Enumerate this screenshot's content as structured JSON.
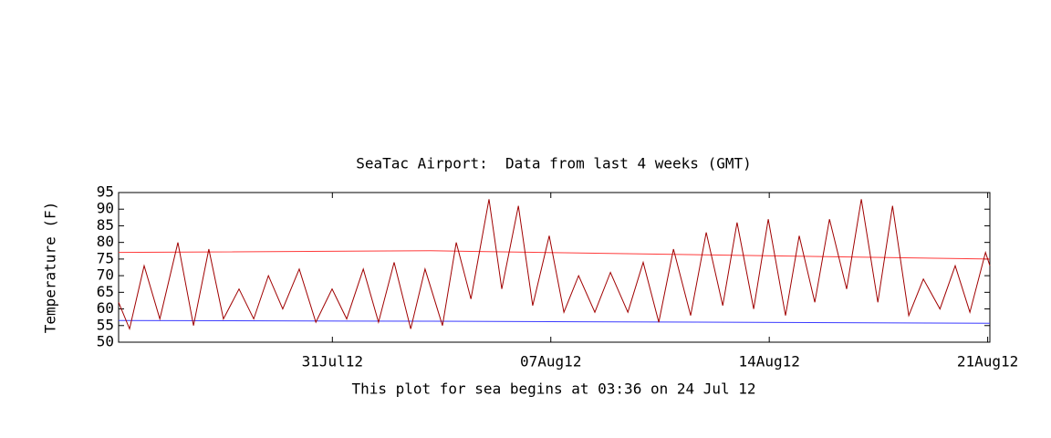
{
  "chart_data": {
    "type": "line",
    "title": "SeaTac Airport:  Data from last 4 weeks (GMT)",
    "y_label": "Temperature (F)",
    "x_label": "This plot for sea begins at 03:36 on 24 Jul 12",
    "xlim": [
      0,
      27.92
    ],
    "xticks": [
      {
        "value": 6.85,
        "label": "31Jul12"
      },
      {
        "value": 13.85,
        "label": "07Aug12"
      },
      {
        "value": 20.85,
        "label": "14Aug12"
      },
      {
        "value": 27.85,
        "label": "21Aug12"
      }
    ],
    "ylim": [
      50,
      95
    ],
    "yticks": [
      50,
      55,
      60,
      65,
      70,
      75,
      80,
      85,
      90,
      95
    ],
    "series": [
      {
        "color": "#ff3b3b",
        "x": [
          0,
          10,
          27.92
        ],
        "values": [
          77,
          77.5,
          75
        ]
      },
      {
        "color": "#3b3bff",
        "x": [
          0,
          10,
          27.92
        ],
        "values": [
          56.5,
          56.3,
          55.7
        ]
      },
      {
        "color": "#a00000",
        "x": [
          0,
          0.35,
          0.82,
          1.32,
          1.9,
          2.4,
          2.89,
          3.36,
          3.86,
          4.33,
          4.8,
          5.26,
          5.79,
          6.32,
          6.84,
          7.31,
          7.84,
          8.33,
          8.83,
          9.36,
          9.82,
          10.38,
          10.82,
          11.29,
          11.87,
          12.28,
          12.81,
          13.27,
          13.8,
          14.27,
          14.74,
          15.26,
          15.76,
          16.32,
          16.81,
          17.31,
          17.78,
          18.33,
          18.83,
          19.36,
          19.82,
          20.35,
          20.82,
          21.37,
          21.81,
          22.31,
          22.78,
          23.33,
          23.8,
          24.33,
          24.8,
          25.32,
          25.79,
          26.32,
          26.81,
          27.28,
          27.78,
          27.92
        ],
        "values": [
          62,
          54,
          73,
          57,
          80,
          55,
          78,
          57,
          66,
          57,
          70,
          60,
          72,
          56,
          66,
          57,
          72,
          56,
          74,
          54,
          72,
          55,
          80,
          63,
          93,
          66,
          91,
          61,
          82,
          59,
          70,
          59,
          71,
          59,
          74,
          56,
          78,
          58,
          83,
          61,
          86,
          60,
          87,
          58,
          82,
          62,
          87,
          66,
          93,
          62,
          91,
          58,
          69,
          60,
          73,
          59,
          77,
          73
        ]
      }
    ]
  }
}
